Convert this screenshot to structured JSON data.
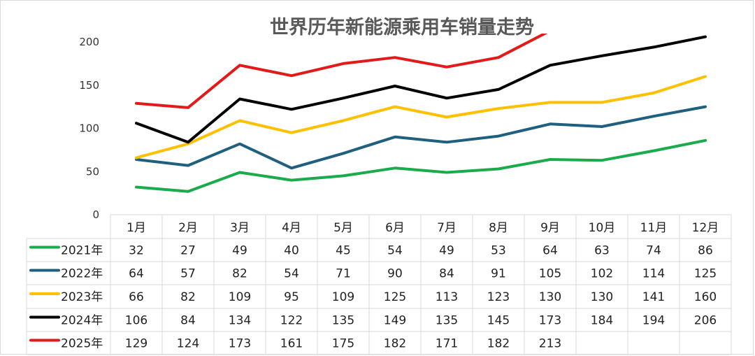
{
  "chart_data": {
    "type": "line",
    "title": "世界历年新能源乘用车销量走势",
    "categories": [
      "1月",
      "2月",
      "3月",
      "4月",
      "5月",
      "6月",
      "7月",
      "8月",
      "9月",
      "10月",
      "11月",
      "12月"
    ],
    "y_ticks": [
      "0",
      "50",
      "100",
      "150",
      "200"
    ],
    "ylim": [
      0,
      200
    ],
    "grid": false,
    "legend": "data-table-left",
    "series": [
      {
        "name": "2021年",
        "color": "#1aab4b",
        "values": [
          32,
          27,
          49,
          40,
          45,
          54,
          49,
          53,
          64,
          63,
          74,
          86
        ]
      },
      {
        "name": "2022年",
        "color": "#1f5f7f",
        "values": [
          64,
          57,
          82,
          54,
          71,
          90,
          84,
          91,
          105,
          102,
          114,
          125
        ]
      },
      {
        "name": "2023年",
        "color": "#ffc000",
        "values": [
          66,
          82,
          109,
          95,
          109,
          125,
          113,
          123,
          130,
          130,
          141,
          160
        ]
      },
      {
        "name": "2024年",
        "color": "#000000",
        "values": [
          106,
          84,
          134,
          122,
          135,
          149,
          135,
          145,
          173,
          184,
          194,
          206
        ]
      },
      {
        "name": "2025年",
        "color": "#e31a1a",
        "values": [
          129,
          124,
          173,
          161,
          175,
          182,
          171,
          182,
          213,
          null,
          null,
          null
        ]
      }
    ]
  }
}
